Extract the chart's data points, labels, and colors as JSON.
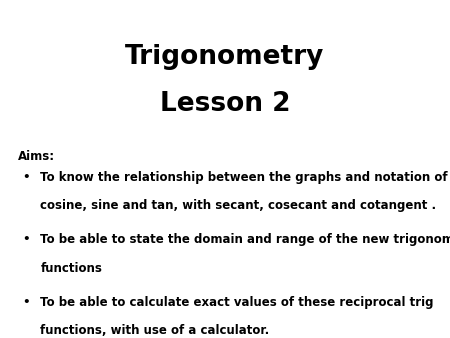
{
  "title_line1": "Trigonometry",
  "title_line2": "Lesson 2",
  "aims_label": "Aims:",
  "bullet1_line1": "To know the relationship between the graphs and notation of",
  "bullet1_line2": "cosine, sine and tan, with secant, cosecant and cotangent .",
  "bullet2_line1": "To be able to state the domain and range of the new trigonometric",
  "bullet2_line2": "functions",
  "bullet3_line1": "To be able to calculate exact values of these reciprocal trig",
  "bullet3_line2": "functions, with use of a calculator.",
  "bg_color": "#ffffff",
  "text_color": "#000000",
  "title_fontsize": 19,
  "body_fontsize": 8.5,
  "aims_fontsize": 8.5
}
